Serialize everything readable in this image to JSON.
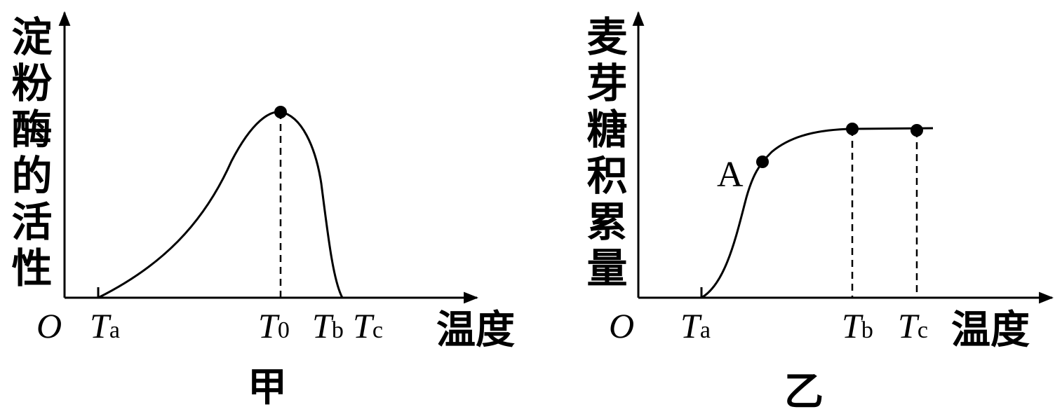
{
  "panels": [
    {
      "y_label": "淀粉酶的活性",
      "x_label": "温度",
      "origin": "O",
      "ticks": [
        {
          "main": "T",
          "sub": "a"
        },
        {
          "main": "T",
          "sub": "0"
        },
        {
          "main": "T",
          "sub": "b"
        },
        {
          "main": "T",
          "sub": "c"
        }
      ],
      "caption": "甲"
    },
    {
      "y_label": "麦芽糖积累量",
      "x_label": "温度",
      "origin": "O",
      "ticks": [
        {
          "main": "T",
          "sub": "a"
        },
        {
          "main": "T",
          "sub": "b"
        },
        {
          "main": "T",
          "sub": "c"
        }
      ],
      "point_label": "A",
      "caption": "乙"
    }
  ]
}
